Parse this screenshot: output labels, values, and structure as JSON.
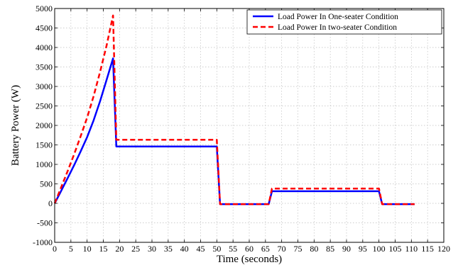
{
  "chart_data": {
    "type": "line",
    "xlabel": "Time (seconds)",
    "ylabel": "Battery Power (W)",
    "xlim": [
      0,
      120
    ],
    "ylim": [
      -1000,
      5000
    ],
    "xticks": [
      0,
      5,
      10,
      15,
      20,
      25,
      30,
      35,
      40,
      45,
      50,
      55,
      60,
      65,
      70,
      75,
      80,
      85,
      90,
      95,
      100,
      105,
      110,
      115,
      120
    ],
    "yticks": [
      -1000,
      -500,
      0,
      500,
      1000,
      1500,
      2000,
      2500,
      3000,
      3500,
      4000,
      4500,
      5000
    ],
    "grid": true,
    "legend_position": "top-right",
    "series": [
      {
        "name": "Load Power In One-seater Condition",
        "color": "#0000ff",
        "style": "solid",
        "x": [
          0,
          2,
          4,
          6,
          8,
          10,
          12,
          14,
          16,
          18,
          19,
          50,
          51,
          66,
          67,
          100,
          101,
          111
        ],
        "y": [
          0,
          320,
          650,
          980,
          1330,
          1700,
          2130,
          2620,
          3170,
          3720,
          1460,
          1460,
          -20,
          -20,
          310,
          310,
          -20,
          -20
        ]
      },
      {
        "name": "Load Power In two-seater Condition",
        "color": "#ff0000",
        "style": "dashed",
        "x": [
          0,
          2,
          4,
          6,
          8,
          10,
          12,
          14,
          16,
          18,
          19,
          50,
          51,
          66,
          67,
          100,
          101,
          111
        ],
        "y": [
          0,
          410,
          830,
          1260,
          1720,
          2200,
          2750,
          3370,
          4050,
          4820,
          1630,
          1630,
          -20,
          -20,
          380,
          380,
          -20,
          -20
        ]
      }
    ]
  }
}
